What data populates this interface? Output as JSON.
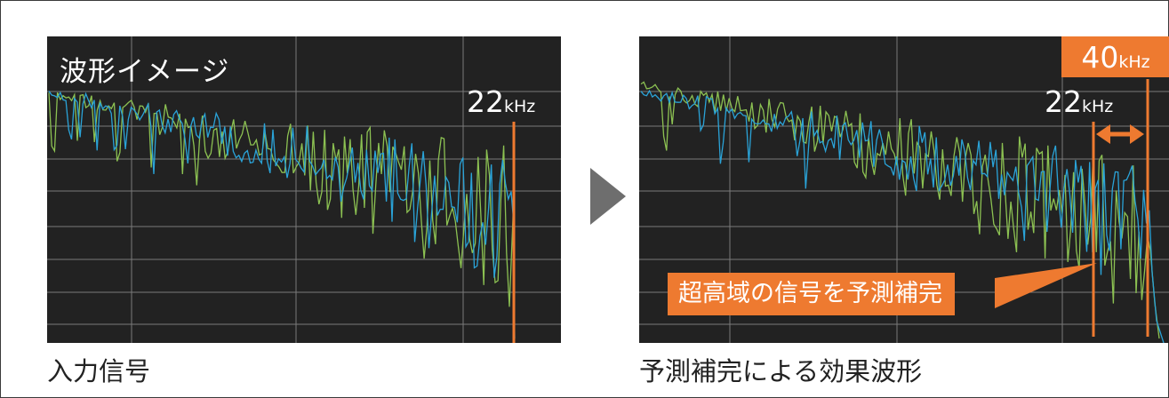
{
  "left_panel": {
    "title": "波形イメージ",
    "cutoff_value": "22",
    "cutoff_unit": "kHz",
    "caption": "入力信号"
  },
  "right_panel": {
    "cutoff_value": "22",
    "cutoff_unit": "kHz",
    "extended_value": "40",
    "extended_unit": "kHz",
    "callout": "超高域の信号を予測補完",
    "caption": "予測補完による効果波形"
  },
  "colors": {
    "panel_background": "#222222",
    "grid": "#7a7a7a",
    "accent_orange": "#ee7a30",
    "wave_green": "#8cc152",
    "wave_blue": "#2aa3d8",
    "arrow_gray": "#6e6e6e"
  },
  "icons": {
    "next_step": "triangle-right-icon",
    "range_arrow": "double-headed-arrow-icon"
  }
}
